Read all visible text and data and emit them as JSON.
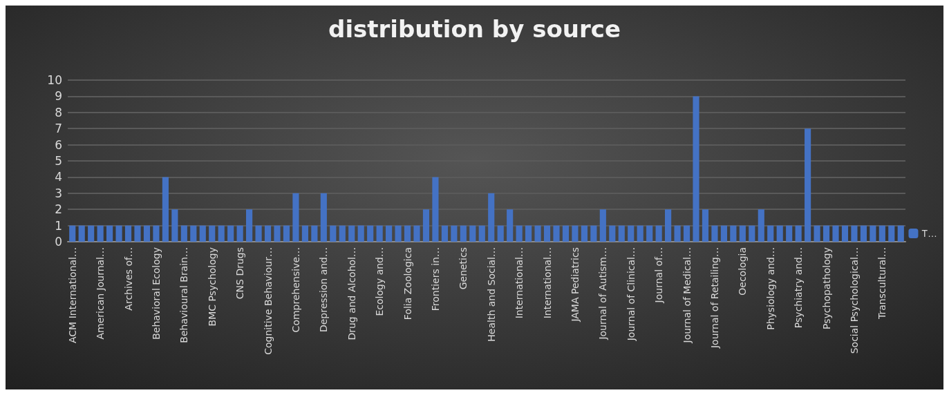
{
  "chart_data": {
    "type": "bar",
    "title": "distribution by source",
    "categories": [
      "ACM International…",
      null,
      null,
      "American Journal…",
      null,
      null,
      "Archives of…",
      null,
      null,
      "Behavioral Ecology",
      null,
      null,
      "Behavioural Brain…",
      null,
      null,
      "BMC Psychology",
      null,
      null,
      "CNS Drugs",
      null,
      null,
      "Cognitive Behaviour…",
      null,
      null,
      "Comprehensive…",
      null,
      null,
      "Depression and…",
      null,
      null,
      "Drug and Alcohol…",
      null,
      null,
      "Ecology and…",
      null,
      null,
      "Folia Zoologica",
      null,
      null,
      "Frontiers in…",
      null,
      null,
      "Genetics",
      null,
      null,
      "Health and Social…",
      null,
      null,
      "International…",
      null,
      null,
      "International…",
      null,
      null,
      "JAMA Pediatrics",
      null,
      null,
      "Journal of Autism…",
      null,
      null,
      "Journal of Clinical…",
      null,
      null,
      "Journal of…",
      null,
      null,
      "Journal of Medical…",
      null,
      null,
      "Journal of Retailing…",
      null,
      null,
      "Oecologia",
      null,
      null,
      "Physiology and…",
      null,
      null,
      "Psychiatry and…",
      null,
      null,
      "Psychopathology",
      null,
      null,
      "Social Psychological…",
      null,
      null,
      "Transcultural…",
      null,
      null
    ],
    "series": [
      {
        "name": "T…",
        "color": "#4472c4",
        "values": [
          1,
          1,
          1,
          1,
          1,
          1,
          1,
          1,
          1,
          1,
          4,
          2,
          1,
          1,
          1,
          1,
          1,
          1,
          1,
          2,
          1,
          1,
          1,
          1,
          3,
          1,
          1,
          3,
          1,
          1,
          1,
          1,
          1,
          1,
          1,
          1,
          1,
          1,
          2,
          4,
          1,
          1,
          1,
          1,
          1,
          3,
          1,
          2,
          1,
          1,
          1,
          1,
          1,
          1,
          1,
          1,
          1,
          2,
          1,
          1,
          1,
          1,
          1,
          1,
          2,
          1,
          1,
          9,
          2,
          1,
          1,
          1,
          1,
          1,
          2,
          1,
          1,
          1,
          1,
          7,
          1,
          1,
          1,
          1,
          1,
          1,
          1,
          1,
          1,
          1
        ]
      }
    ],
    "ylim": [
      0,
      10
    ],
    "yticks": [
      0,
      1,
      2,
      3,
      4,
      5,
      6,
      7,
      8,
      9,
      10
    ],
    "grid": "y",
    "legend": "bottom right"
  }
}
